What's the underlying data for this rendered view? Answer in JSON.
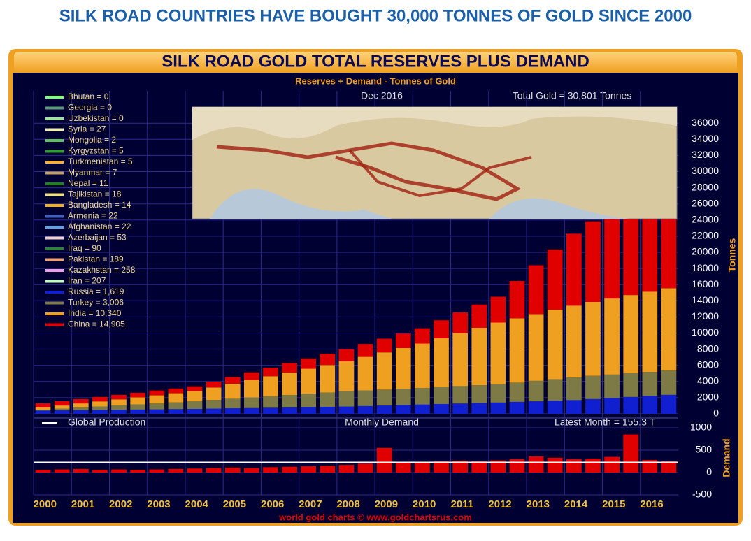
{
  "headline": "SILK ROAD COUNTRIES HAVE BOUGHT 30,000 TONNES OF GOLD SINCE 2000",
  "chart_data": {
    "type": "bar",
    "stacked": true,
    "title": "SILK ROAD GOLD TOTAL RESERVES PLUS DEMAND",
    "subtitle": "Reserves + Demand - Tonnes of Gold",
    "date_note": "Dec  2016",
    "total_note": "Total Gold = 30,801 Tonnes",
    "y_label": "Tonnes",
    "footer": "world gold charts © www.goldchartsrus.com",
    "grid": true,
    "categories": [
      "2000",
      null,
      "2001",
      null,
      "2002",
      null,
      "2003",
      null,
      "2004",
      null,
      "2005",
      null,
      "2006",
      null,
      "2007",
      null,
      "2008",
      null,
      "2009",
      null,
      "2010",
      null,
      "2011",
      null,
      "2012",
      null,
      "2013",
      null,
      "2014",
      null,
      "2015",
      null,
      "2016",
      null
    ],
    "ylim": [
      0,
      40000
    ],
    "yticks": [
      0,
      2000,
      4000,
      6000,
      8000,
      10000,
      12000,
      14000,
      16000,
      18000,
      20000,
      22000,
      24000,
      26000,
      28000,
      30000,
      32000,
      34000,
      36000
    ],
    "other_legend": [
      {
        "label": "Bhutan = 0",
        "color": "#7fff7f"
      },
      {
        "label": "Georgia = 0",
        "color": "#5a9a7a"
      },
      {
        "label": "Uzbekistan = 0",
        "color": "#a0e0a0"
      },
      {
        "label": "Syria = 27",
        "color": "#f0f0b0"
      },
      {
        "label": "Mongolia = 2",
        "color": "#60c060"
      },
      {
        "label": "Kyrgyzstan = 5",
        "color": "#30a030"
      },
      {
        "label": "Turkmenistan = 5",
        "color": "#f0b040"
      },
      {
        "label": "Myanmar = 7",
        "color": "#c0a060"
      },
      {
        "label": "Nepal = 11",
        "color": "#208020"
      },
      {
        "label": "Tajikistan = 18",
        "color": "#f0e080"
      },
      {
        "label": "Bangladesh = 14",
        "color": "#e8b030"
      },
      {
        "label": "Armenia = 22",
        "color": "#4060c0"
      },
      {
        "label": "Afghanistan = 22",
        "color": "#60a0e0"
      },
      {
        "label": "Azerbaijan = 53",
        "color": "#f0d0d0"
      },
      {
        "label": "Iraq = 90",
        "color": "#308040"
      },
      {
        "label": "Pakistan = 189",
        "color": "#f0a070"
      },
      {
        "label": "Kazakhstan = 258",
        "color": "#f0a0e0"
      },
      {
        "label": "Iran = 207",
        "color": "#c0ffc0"
      }
    ],
    "series": [
      {
        "name": "Russia = 1,619",
        "color": "#1020d0",
        "values": [
          400,
          430,
          450,
          480,
          500,
          530,
          550,
          580,
          600,
          640,
          680,
          710,
          750,
          790,
          830,
          860,
          900,
          960,
          1030,
          1090,
          1150,
          1210,
          1280,
          1340,
          1400,
          1480,
          1550,
          1630,
          1700,
          1830,
          1960,
          2090,
          2220,
          2350
        ]
      },
      {
        "name": "Turkey = 3,006",
        "color": "#7d7a45",
        "values": [
          120,
          220,
          330,
          430,
          540,
          640,
          750,
          850,
          960,
          1075,
          1190,
          1315,
          1430,
          1545,
          1660,
          1785,
          1900,
          1940,
          1970,
          2010,
          2050,
          2100,
          2150,
          2200,
          2250,
          2380,
          2530,
          2660,
          2800,
          2870,
          2900,
          2940,
          2970,
          3000
        ]
      },
      {
        "name": "India = 10,340",
        "color": "#f0a020",
        "values": [
          260,
          380,
          510,
          630,
          750,
          870,
          990,
          1120,
          1240,
          1545,
          1860,
          2165,
          2470,
          2775,
          3090,
          3395,
          3700,
          4150,
          4600,
          5050,
          5500,
          6040,
          6570,
          7110,
          7650,
          7970,
          8270,
          8590,
          8900,
          9160,
          9420,
          9680,
          9940,
          10200
        ]
      },
      {
        "name": "China = 14,905",
        "color": "#e00000",
        "values": [
          520,
          530,
          540,
          550,
          560,
          570,
          590,
          590,
          600,
          720,
          820,
          940,
          1050,
          1170,
          1270,
          1390,
          1500,
          1600,
          1700,
          1800,
          1900,
          2230,
          2550,
          2880,
          3200,
          4620,
          6050,
          7470,
          8900,
          9980,
          11060,
          12140,
          13220,
          14300
        ]
      }
    ],
    "demand": {
      "title": "Monthly Demand",
      "latest_note": "Latest Month = 155.3 T",
      "y_label": "Demand",
      "color": "#e00000",
      "ylim": [
        -500,
        1000
      ],
      "yticks": [
        -500,
        0,
        500,
        1000
      ],
      "values": [
        60,
        70,
        80,
        60,
        70,
        60,
        70,
        80,
        90,
        100,
        110,
        100,
        120,
        130,
        140,
        150,
        170,
        200,
        550,
        220,
        240,
        250,
        260,
        250,
        270,
        300,
        360,
        330,
        300,
        310,
        350,
        850,
        280,
        250
      ],
      "production": {
        "name": "Global Production",
        "color": "#ffffff",
        "value": 230
      }
    }
  }
}
